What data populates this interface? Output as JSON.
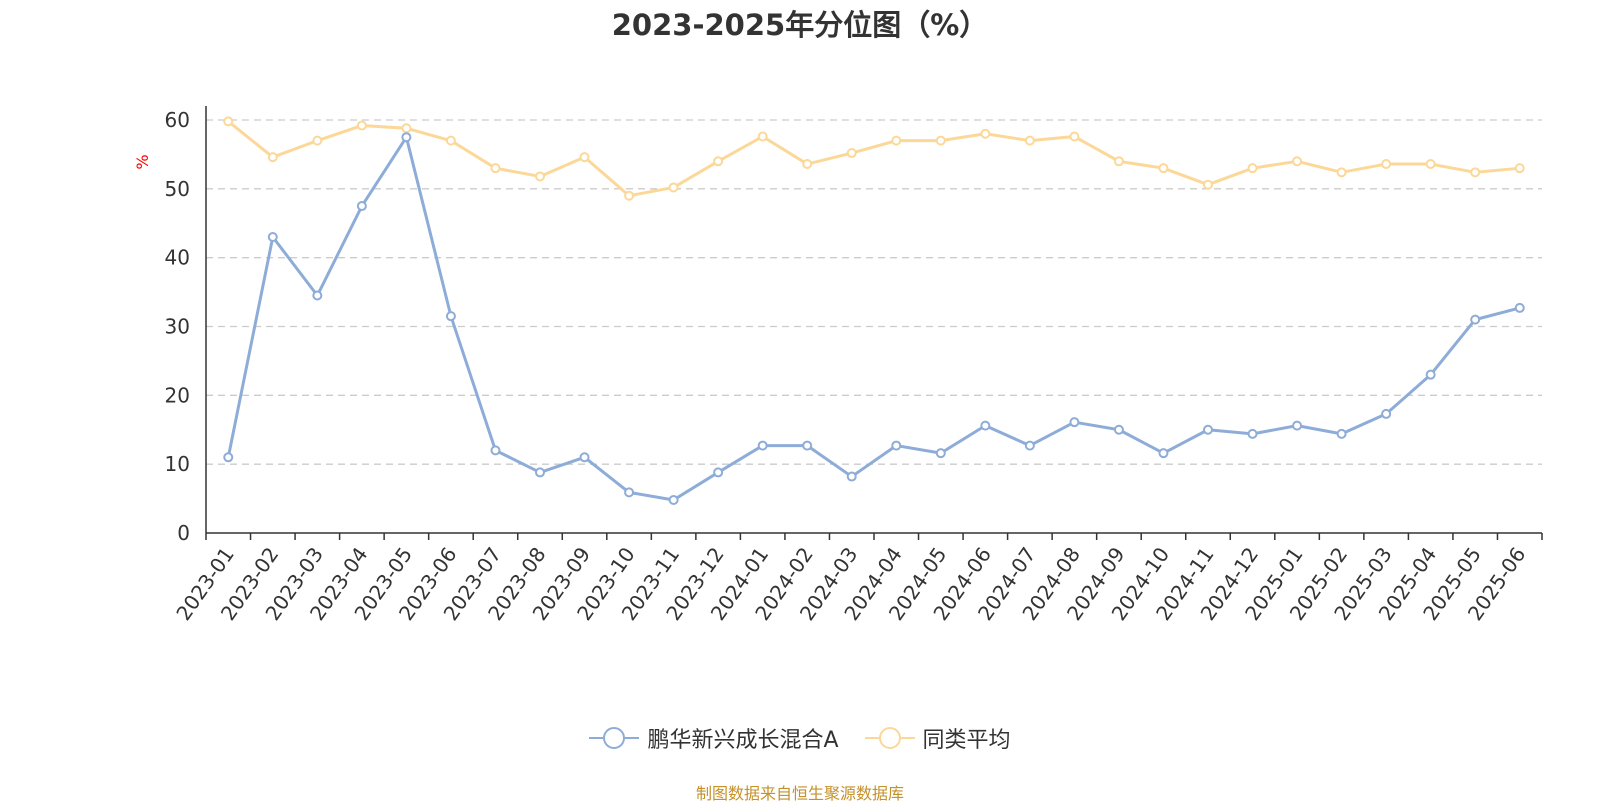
{
  "title": "2023-2025年分位图（%）",
  "source": "制图数据来自恒生聚源数据库",
  "chart_data": {
    "type": "line",
    "title": "2023-2025年分位图（%）",
    "xlabel": "",
    "ylabel": "%",
    "ylim": [
      0,
      60
    ],
    "yticks": [
      0,
      10,
      20,
      30,
      40,
      50,
      60
    ],
    "grid": "horizontal dashed",
    "legend_position": "bottom-center",
    "categories": [
      "2023-01",
      "2023-02",
      "2023-03",
      "2023-04",
      "2023-05",
      "2023-06",
      "2023-07",
      "2023-08",
      "2023-09",
      "2023-10",
      "2023-11",
      "2023-12",
      "2024-01",
      "2024-02",
      "2024-03",
      "2024-04",
      "2024-05",
      "2024-06",
      "2024-07",
      "2024-08",
      "2024-09",
      "2024-10",
      "2024-11",
      "2024-12",
      "2025-01",
      "2025-02",
      "2025-03",
      "2025-04",
      "2025-05",
      "2025-06"
    ],
    "series": [
      {
        "name": "鹏华新兴成长混合A",
        "color": "#8eacd8",
        "values": [
          11.0,
          43.0,
          34.5,
          47.5,
          57.5,
          31.5,
          12.0,
          8.8,
          11.0,
          5.9,
          4.8,
          8.8,
          12.7,
          12.7,
          8.2,
          12.7,
          11.6,
          15.6,
          12.7,
          16.1,
          15.0,
          11.6,
          15.0,
          14.4,
          15.6,
          14.4,
          17.3,
          23.0,
          31.0,
          32.7
        ]
      },
      {
        "name": "同类平均",
        "color": "#fcd898",
        "values": [
          59.8,
          54.6,
          57.0,
          59.2,
          58.8,
          57.0,
          53.0,
          51.8,
          54.6,
          49.0,
          50.2,
          54.0,
          57.6,
          53.6,
          55.2,
          57.0,
          57.0,
          58.0,
          57.0,
          57.6,
          54.0,
          53.0,
          50.6,
          53.0,
          54.0,
          52.4,
          53.6,
          53.6,
          52.4,
          53.0
        ]
      }
    ]
  }
}
